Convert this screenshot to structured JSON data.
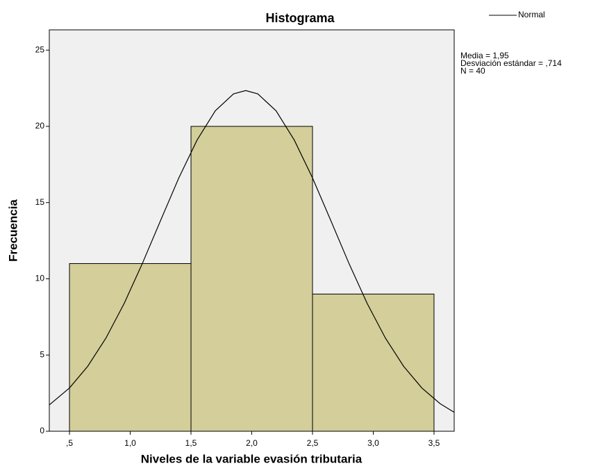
{
  "chart_data": {
    "type": "histogram",
    "title": "Histograma",
    "xlabel": "Niveles de la variable evasión tributaria",
    "ylabel": "Frecuencia",
    "bins": [
      0.5,
      1.5,
      2.5,
      3.5
    ],
    "counts": [
      11,
      20,
      9
    ],
    "color": "#d3ce9a",
    "xlim": [
      0.334,
      3.666
    ],
    "ylim": [
      0,
      26.33
    ],
    "xticks": [
      {
        "value": 0.5,
        "label": ",5"
      },
      {
        "value": 1.0,
        "label": "1,0"
      },
      {
        "value": 1.5,
        "label": "1,5"
      },
      {
        "value": 2.0,
        "label": "2,0"
      },
      {
        "value": 2.5,
        "label": "2,5"
      },
      {
        "value": 3.0,
        "label": "3,0"
      },
      {
        "value": 3.5,
        "label": "3,5"
      }
    ],
    "yticks": [
      0,
      5,
      10,
      15,
      20,
      25
    ],
    "series": [
      {
        "name": "Normal",
        "color": "#000000",
        "x": [
          0.334,
          0.5,
          0.65,
          0.8,
          0.95,
          1.1,
          1.25,
          1.4,
          1.55,
          1.7,
          1.85,
          1.95,
          2.05,
          2.2,
          2.35,
          2.5,
          2.65,
          2.8,
          2.95,
          3.1,
          3.25,
          3.4,
          3.55,
          3.666
        ],
        "values": [
          1.73,
          2.84,
          4.26,
          6.11,
          8.38,
          11.01,
          13.83,
          16.62,
          19.1,
          21.02,
          22.13,
          22.35,
          22.13,
          21.02,
          19.1,
          16.62,
          13.83,
          11.01,
          8.38,
          6.11,
          4.26,
          2.84,
          1.81,
          1.24
        ]
      }
    ],
    "annotations": [
      "Media = 1,95",
      "Desviación estándar = ,714",
      "N = 40"
    ]
  }
}
